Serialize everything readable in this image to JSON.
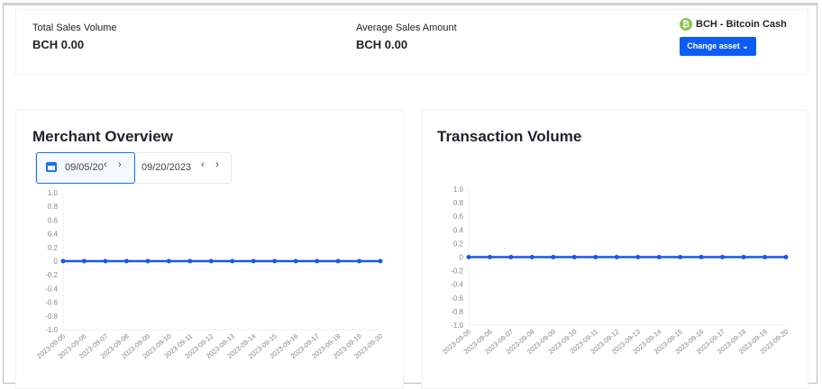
{
  "summary": {
    "total_sales_volume_label": "Total Sales Volume",
    "total_sales_volume_value": "BCH 0.00",
    "average_sales_amount_label": "Average Sales Amount",
    "average_sales_amount_value": "BCH 0.00",
    "asset_name": "BCH - Bitcoin Cash",
    "asset_icon": "bitcoin-cash-icon",
    "asset_icon_glyph": "₿",
    "asset_color": "#8dc351",
    "change_asset_label": "Change asset ⌄"
  },
  "merchant_overview": {
    "title": "Merchant Overview",
    "date_start": "09/05/20",
    "date_end": "09/20/2023",
    "prev_glyph": "‹",
    "next_glyph": "›"
  },
  "transaction_volume": {
    "title": "Transaction Volume"
  },
  "chart_data": [
    {
      "type": "line",
      "title": "Merchant Overview",
      "categories": [
        "2023-09-05",
        "2023-09-06",
        "2023-09-07",
        "2023-09-08",
        "2023-09-09",
        "2023-09-10",
        "2023-09-11",
        "2023-09-12",
        "2023-09-13",
        "2023-09-14",
        "2023-09-15",
        "2023-09-16",
        "2023-09-17",
        "2023-09-18",
        "2023-09-19",
        "2023-09-20"
      ],
      "values": [
        0,
        0,
        0,
        0,
        0,
        0,
        0,
        0,
        0,
        0,
        0,
        0,
        0,
        0,
        0,
        0
      ],
      "yticks": [
        "1.0",
        "0.8",
        "0.6",
        "0.4",
        "0.2",
        "0",
        "-0.2",
        "-0.4",
        "-0.6",
        "-0.8",
        "-1.0"
      ],
      "ylim": [
        -1,
        1
      ],
      "color": "#1a56e8",
      "grid": false
    },
    {
      "type": "line",
      "title": "Transaction Volume",
      "categories": [
        "2023-09-05",
        "2023-09-06",
        "2023-09-07",
        "2023-09-08",
        "2023-09-09",
        "2023-09-10",
        "2023-09-11",
        "2023-09-12",
        "2023-09-13",
        "2023-09-14",
        "2023-09-15",
        "2023-09-16",
        "2023-09-17",
        "2023-09-18",
        "2023-09-19",
        "2023-09-20"
      ],
      "values": [
        0,
        0,
        0,
        0,
        0,
        0,
        0,
        0,
        0,
        0,
        0,
        0,
        0,
        0,
        0,
        0
      ],
      "yticks": [
        "1.0",
        "0.8",
        "0.6",
        "0.4",
        "0.2",
        "0",
        "-0.2",
        "-0.4",
        "-0.6",
        "-0.8",
        "-1.0"
      ],
      "ylim": [
        -1,
        1
      ],
      "color": "#1a56e8",
      "grid": false
    }
  ]
}
